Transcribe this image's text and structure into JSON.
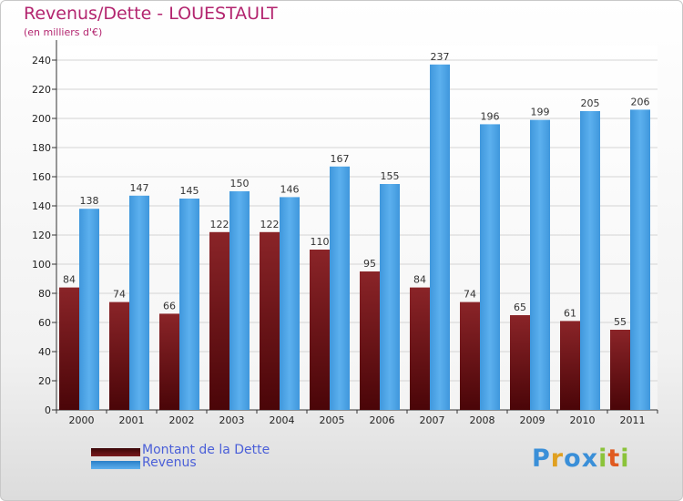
{
  "chart_data": {
    "type": "bar",
    "title": "Revenus/Dette - LOUESTAULT",
    "subtitle": "(en milliers d'€)",
    "categories": [
      "2000",
      "2001",
      "2002",
      "2003",
      "2004",
      "2005",
      "2006",
      "2007",
      "2008",
      "2009",
      "2010",
      "2011"
    ],
    "series": [
      {
        "name": "Montant de la Dette",
        "values": [
          84,
          74,
          66,
          122,
          122,
          110,
          95,
          84,
          74,
          65,
          61,
          55
        ],
        "color": "#7a1a1e"
      },
      {
        "name": "Revenus",
        "values": [
          138,
          147,
          145,
          150,
          146,
          167,
          155,
          237,
          196,
          199,
          205,
          206
        ],
        "color": "#4ea3e4"
      }
    ],
    "ylim": [
      0,
      250
    ],
    "yticks": [
      0,
      20,
      40,
      60,
      80,
      100,
      120,
      140,
      160,
      180,
      200,
      220,
      240
    ],
    "grid": true,
    "legend": "bottom-left"
  },
  "logo": {
    "letters": [
      "P",
      "r",
      "o",
      "x",
      "i",
      "t",
      "i"
    ],
    "colors": [
      "#3a8fd8",
      "#e0a020",
      "#3a8fd8",
      "#3a8fd8",
      "#8bc33a",
      "#e05a20",
      "#8bc33a"
    ]
  }
}
